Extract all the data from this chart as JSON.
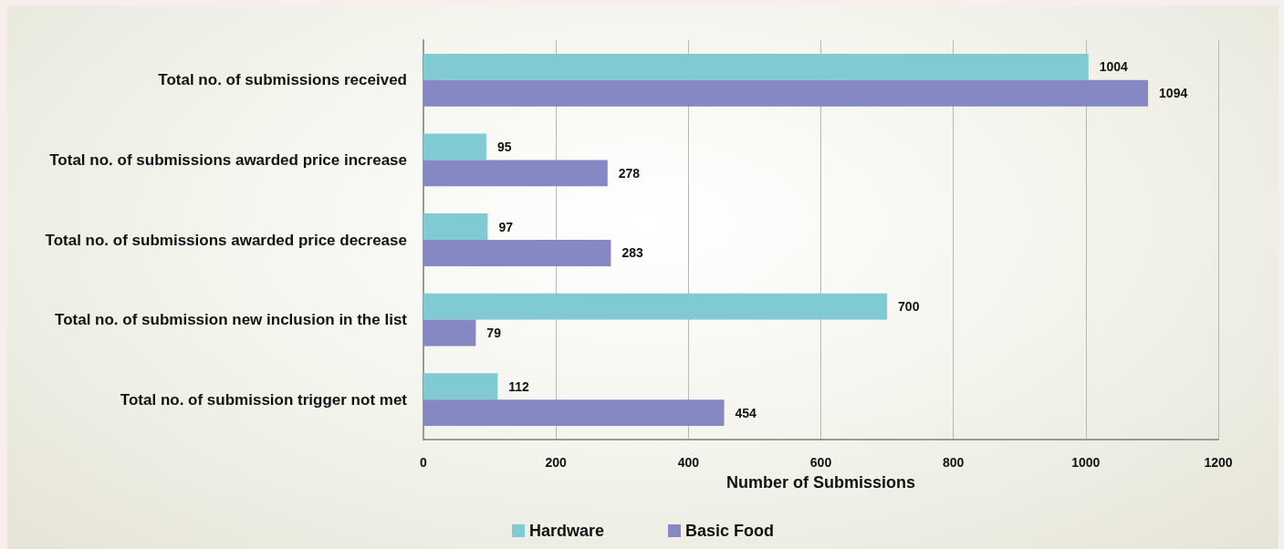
{
  "chart_data": {
    "type": "bar",
    "orientation": "horizontal",
    "xlabel": "Number of Submissions",
    "categories": [
      "Total no. of submissions received",
      "Total no. of submissions awarded price increase",
      "Total no. of submissions awarded price decrease",
      "Total no. of submission new inclusion in the list",
      "Total no. of submission trigger not met"
    ],
    "series": [
      {
        "name": "Hardware",
        "color": "#80cbd3",
        "values": [
          1004,
          95,
          97,
          700,
          112
        ]
      },
      {
        "name": "Basic Food",
        "color": "#8688c4",
        "values": [
          1094,
          278,
          283,
          79,
          454
        ]
      }
    ],
    "xlim": [
      0,
      1200
    ],
    "xticks": [
      0,
      200,
      400,
      600,
      800,
      1000,
      1200
    ],
    "grid": "x",
    "legend": "bottom",
    "data_labels": true
  }
}
